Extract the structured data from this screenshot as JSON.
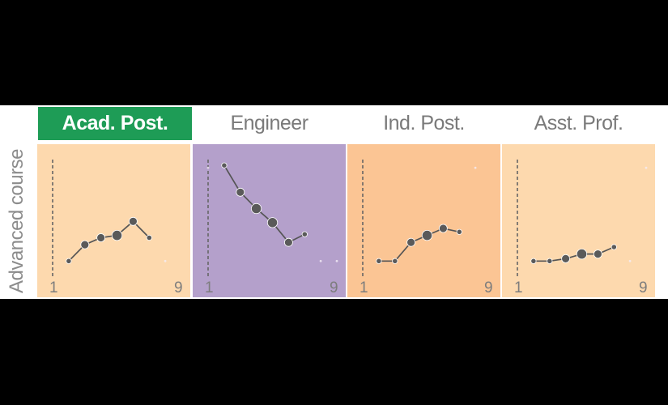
{
  "y_label": "Advanced course",
  "colors": {
    "light_orange": "#fdd9ae",
    "orange": "#fbc594",
    "purple": "#b4a0cb",
    "highlight": "#1e9c56",
    "line": "#555555",
    "point": "#5a5a5a"
  },
  "panels": [
    {
      "title": "Acad. Post.",
      "highlighted": true,
      "background": "light_orange"
    },
    {
      "title": "Engineer",
      "highlighted": false,
      "background": "purple"
    },
    {
      "title": "Ind. Post.",
      "highlighted": false,
      "background": "orange"
    },
    {
      "title": "Asst. Prof.",
      "highlighted": false,
      "background": "light_orange"
    }
  ],
  "chart_data": [
    {
      "type": "line",
      "title": "Acad. Post.",
      "ylabel": "Advanced course",
      "x_ticks": [
        "1",
        "9"
      ],
      "xlim": [
        1,
        9
      ],
      "ylim": [
        0,
        1
      ],
      "points": [
        {
          "x": 2,
          "y": 0.13,
          "size": 1
        },
        {
          "x": 3,
          "y": 0.27,
          "size": 2
        },
        {
          "x": 4,
          "y": 0.33,
          "size": 2
        },
        {
          "x": 5,
          "y": 0.35,
          "size": 3
        },
        {
          "x": 6,
          "y": 0.47,
          "size": 2
        },
        {
          "x": 7,
          "y": 0.33,
          "size": 1
        },
        {
          "x": 8,
          "y": 0.13,
          "size": 0
        }
      ]
    },
    {
      "type": "line",
      "title": "Engineer",
      "ylabel": "Advanced course",
      "x_ticks": [
        "1",
        "9"
      ],
      "xlim": [
        1,
        9
      ],
      "ylim": [
        0,
        1
      ],
      "points": [
        {
          "x": 1,
          "y": 0.93,
          "size": 0
        },
        {
          "x": 2,
          "y": 0.95,
          "size": 1
        },
        {
          "x": 3,
          "y": 0.72,
          "size": 2
        },
        {
          "x": 4,
          "y": 0.58,
          "size": 3
        },
        {
          "x": 5,
          "y": 0.46,
          "size": 3
        },
        {
          "x": 6,
          "y": 0.29,
          "size": 2
        },
        {
          "x": 7,
          "y": 0.36,
          "size": 1
        },
        {
          "x": 8,
          "y": 0.13,
          "size": 0
        },
        {
          "x": 9,
          "y": 0.13,
          "size": 0
        }
      ]
    },
    {
      "type": "line",
      "title": "Ind. Post.",
      "ylabel": "Advanced course",
      "x_ticks": [
        "1",
        "9"
      ],
      "xlim": [
        1,
        9
      ],
      "ylim": [
        0,
        1
      ],
      "points": [
        {
          "x": 2,
          "y": 0.13,
          "size": 1
        },
        {
          "x": 3,
          "y": 0.13,
          "size": 1
        },
        {
          "x": 4,
          "y": 0.29,
          "size": 2
        },
        {
          "x": 5,
          "y": 0.35,
          "size": 3
        },
        {
          "x": 6,
          "y": 0.41,
          "size": 2
        },
        {
          "x": 7,
          "y": 0.38,
          "size": 1
        },
        {
          "x": 8,
          "y": 0.93,
          "size": 0
        }
      ]
    },
    {
      "type": "line",
      "title": "Asst. Prof.",
      "ylabel": "Advanced course",
      "x_ticks": [
        "1",
        "9"
      ],
      "xlim": [
        1,
        9
      ],
      "ylim": [
        0,
        1
      ],
      "points": [
        {
          "x": 2,
          "y": 0.13,
          "size": 1
        },
        {
          "x": 3,
          "y": 0.13,
          "size": 1
        },
        {
          "x": 4,
          "y": 0.15,
          "size": 2
        },
        {
          "x": 5,
          "y": 0.19,
          "size": 3
        },
        {
          "x": 6,
          "y": 0.19,
          "size": 2
        },
        {
          "x": 7,
          "y": 0.25,
          "size": 1
        },
        {
          "x": 8,
          "y": 0.13,
          "size": 0
        },
        {
          "x": 9,
          "y": 0.93,
          "size": 0
        }
      ]
    }
  ]
}
